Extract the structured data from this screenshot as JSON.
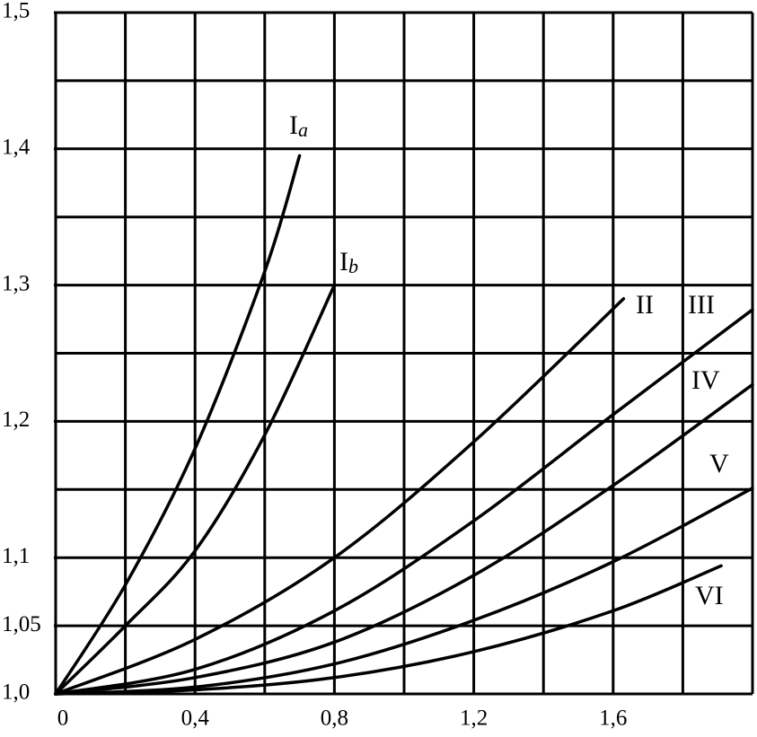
{
  "chart_data": {
    "type": "line",
    "xlim": [
      0,
      2.0
    ],
    "ylim": [
      1.0,
      1.5
    ],
    "xticks": [
      0,
      {
        "value": 0.4,
        "label": "0,4"
      },
      {
        "value": 0.8,
        "label": "0,8"
      },
      {
        "value": 1.2,
        "label": "1,2"
      },
      {
        "value": 1.6,
        "label": "1,6"
      }
    ],
    "x_minor_grid": [
      0.2,
      0.6,
      1.0,
      1.4,
      1.8,
      2.0
    ],
    "yticks": [
      {
        "value": 1.0,
        "label": "1,0"
      },
      {
        "value": 1.05,
        "label": "1,05"
      },
      {
        "value": 1.1,
        "label": "1,1"
      },
      {
        "value": 1.2,
        "label": "1,2"
      },
      {
        "value": 1.3,
        "label": "1,3"
      },
      {
        "value": 1.4,
        "label": "1,4"
      },
      {
        "value": 1.5,
        "label": "1,5"
      }
    ],
    "y_minor_grid": [
      1.15,
      1.25,
      1.35,
      1.45
    ],
    "grid": true,
    "color": "#000000",
    "series": [
      {
        "name": "I",
        "name_sub": "a",
        "x": [
          0,
          0.2,
          0.4,
          0.6,
          0.7
        ],
        "values": [
          1.0,
          1.08,
          1.18,
          1.31,
          1.395
        ]
      },
      {
        "name": "I",
        "name_sub": "b",
        "x": [
          0,
          0.2,
          0.4,
          0.6,
          0.8
        ],
        "values": [
          1.0,
          1.05,
          1.105,
          1.19,
          1.3
        ]
      },
      {
        "name": "II",
        "x": [
          0,
          0.4,
          0.8,
          1.2,
          1.63
        ],
        "values": [
          1.0,
          1.04,
          1.1,
          1.185,
          1.29
        ]
      },
      {
        "name": "III",
        "x": [
          0,
          0.4,
          0.8,
          1.2,
          1.6,
          2.0
        ],
        "values": [
          1.0,
          1.018,
          1.061,
          1.127,
          1.205,
          1.282
        ]
      },
      {
        "name": "IV",
        "x": [
          0,
          0.4,
          0.8,
          1.2,
          1.6,
          2.0
        ],
        "values": [
          1.0,
          1.012,
          1.038,
          1.087,
          1.153,
          1.227
        ]
      },
      {
        "name": "V",
        "x": [
          0,
          0.4,
          0.8,
          1.2,
          1.6,
          2.0
        ],
        "values": [
          1.0,
          1.005,
          1.022,
          1.054,
          1.097,
          1.151
        ]
      },
      {
        "name": "VI",
        "x": [
          0,
          0.4,
          0.8,
          1.2,
          1.6,
          1.91
        ],
        "values": [
          1.0,
          1.003,
          1.012,
          1.031,
          1.061,
          1.094
        ]
      }
    ]
  }
}
